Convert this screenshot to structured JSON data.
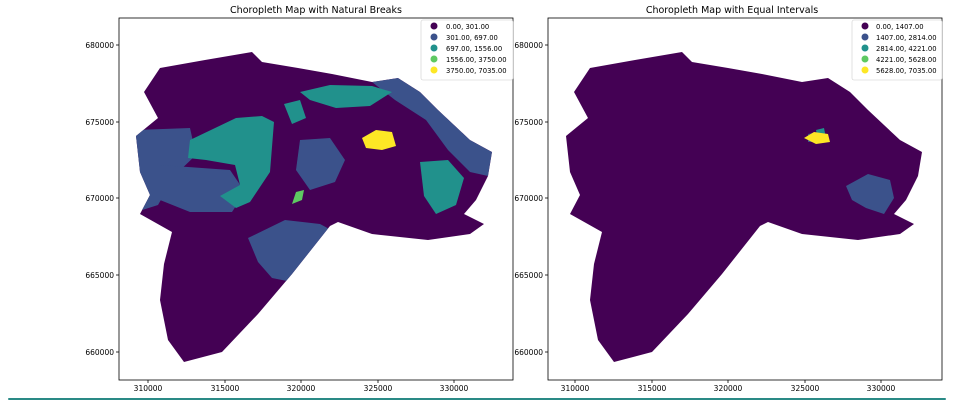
{
  "colors": {
    "c0": "#440154",
    "c1": "#3b528b",
    "c2": "#21918c",
    "c3": "#5ec962",
    "c4": "#fde725",
    "axis": "#000000",
    "frame_accent": "#2a8a86"
  },
  "panels": [
    {
      "title": "Choropleth Map with Natural Breaks",
      "legend": [
        "0.00,  301.00",
        "301.00,  697.00",
        "697.00, 1556.00",
        "1556.00, 3750.00",
        "3750.00, 7035.00"
      ],
      "xticks": [
        "310000",
        "315000",
        "320000",
        "325000",
        "330000"
      ],
      "yticks": [
        "680000",
        "675000",
        "670000",
        "665000",
        "660000"
      ]
    },
    {
      "title": "Choropleth Map with Equal Intervals",
      "legend": [
        "0.00, 1407.00",
        "1407.00, 2814.00",
        "2814.00, 4221.00",
        "4221.00, 5628.00",
        "5628.00, 7035.00"
      ],
      "xticks": [
        "310000",
        "315000",
        "320000",
        "325000",
        "330000"
      ],
      "yticks": [
        "680000",
        "675000",
        "670000",
        "665000",
        "660000"
      ]
    }
  ]
}
